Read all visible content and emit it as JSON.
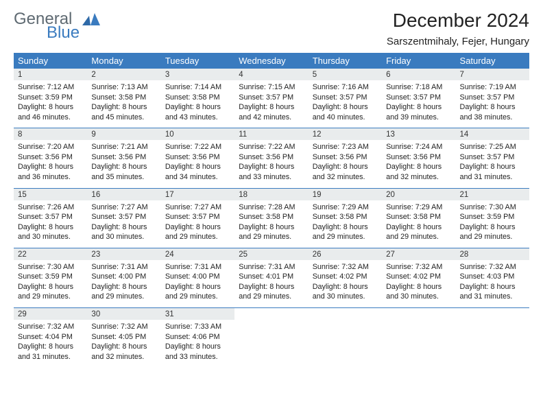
{
  "brand": {
    "word1": "General",
    "word2": "Blue"
  },
  "title": "December 2024",
  "location": "Sarszentmihaly, Fejer, Hungary",
  "colors": {
    "header_bg": "#3a7bbf",
    "daynum_bg": "#e9eced",
    "rule": "#3a7bbf",
    "logo_gray": "#5f6a72",
    "logo_blue": "#3a7bbf"
  },
  "weekdays": [
    "Sunday",
    "Monday",
    "Tuesday",
    "Wednesday",
    "Thursday",
    "Friday",
    "Saturday"
  ],
  "weeks": [
    [
      {
        "n": "1",
        "sr": "7:12 AM",
        "ss": "3:59 PM",
        "dl": "8 hours and 46 minutes."
      },
      {
        "n": "2",
        "sr": "7:13 AM",
        "ss": "3:58 PM",
        "dl": "8 hours and 45 minutes."
      },
      {
        "n": "3",
        "sr": "7:14 AM",
        "ss": "3:58 PM",
        "dl": "8 hours and 43 minutes."
      },
      {
        "n": "4",
        "sr": "7:15 AM",
        "ss": "3:57 PM",
        "dl": "8 hours and 42 minutes."
      },
      {
        "n": "5",
        "sr": "7:16 AM",
        "ss": "3:57 PM",
        "dl": "8 hours and 40 minutes."
      },
      {
        "n": "6",
        "sr": "7:18 AM",
        "ss": "3:57 PM",
        "dl": "8 hours and 39 minutes."
      },
      {
        "n": "7",
        "sr": "7:19 AM",
        "ss": "3:57 PM",
        "dl": "8 hours and 38 minutes."
      }
    ],
    [
      {
        "n": "8",
        "sr": "7:20 AM",
        "ss": "3:56 PM",
        "dl": "8 hours and 36 minutes."
      },
      {
        "n": "9",
        "sr": "7:21 AM",
        "ss": "3:56 PM",
        "dl": "8 hours and 35 minutes."
      },
      {
        "n": "10",
        "sr": "7:22 AM",
        "ss": "3:56 PM",
        "dl": "8 hours and 34 minutes."
      },
      {
        "n": "11",
        "sr": "7:22 AM",
        "ss": "3:56 PM",
        "dl": "8 hours and 33 minutes."
      },
      {
        "n": "12",
        "sr": "7:23 AM",
        "ss": "3:56 PM",
        "dl": "8 hours and 32 minutes."
      },
      {
        "n": "13",
        "sr": "7:24 AM",
        "ss": "3:56 PM",
        "dl": "8 hours and 32 minutes."
      },
      {
        "n": "14",
        "sr": "7:25 AM",
        "ss": "3:57 PM",
        "dl": "8 hours and 31 minutes."
      }
    ],
    [
      {
        "n": "15",
        "sr": "7:26 AM",
        "ss": "3:57 PM",
        "dl": "8 hours and 30 minutes."
      },
      {
        "n": "16",
        "sr": "7:27 AM",
        "ss": "3:57 PM",
        "dl": "8 hours and 30 minutes."
      },
      {
        "n": "17",
        "sr": "7:27 AM",
        "ss": "3:57 PM",
        "dl": "8 hours and 29 minutes."
      },
      {
        "n": "18",
        "sr": "7:28 AM",
        "ss": "3:58 PM",
        "dl": "8 hours and 29 minutes."
      },
      {
        "n": "19",
        "sr": "7:29 AM",
        "ss": "3:58 PM",
        "dl": "8 hours and 29 minutes."
      },
      {
        "n": "20",
        "sr": "7:29 AM",
        "ss": "3:58 PM",
        "dl": "8 hours and 29 minutes."
      },
      {
        "n": "21",
        "sr": "7:30 AM",
        "ss": "3:59 PM",
        "dl": "8 hours and 29 minutes."
      }
    ],
    [
      {
        "n": "22",
        "sr": "7:30 AM",
        "ss": "3:59 PM",
        "dl": "8 hours and 29 minutes."
      },
      {
        "n": "23",
        "sr": "7:31 AM",
        "ss": "4:00 PM",
        "dl": "8 hours and 29 minutes."
      },
      {
        "n": "24",
        "sr": "7:31 AM",
        "ss": "4:00 PM",
        "dl": "8 hours and 29 minutes."
      },
      {
        "n": "25",
        "sr": "7:31 AM",
        "ss": "4:01 PM",
        "dl": "8 hours and 29 minutes."
      },
      {
        "n": "26",
        "sr": "7:32 AM",
        "ss": "4:02 PM",
        "dl": "8 hours and 30 minutes."
      },
      {
        "n": "27",
        "sr": "7:32 AM",
        "ss": "4:02 PM",
        "dl": "8 hours and 30 minutes."
      },
      {
        "n": "28",
        "sr": "7:32 AM",
        "ss": "4:03 PM",
        "dl": "8 hours and 31 minutes."
      }
    ],
    [
      {
        "n": "29",
        "sr": "7:32 AM",
        "ss": "4:04 PM",
        "dl": "8 hours and 31 minutes."
      },
      {
        "n": "30",
        "sr": "7:32 AM",
        "ss": "4:05 PM",
        "dl": "8 hours and 32 minutes."
      },
      {
        "n": "31",
        "sr": "7:33 AM",
        "ss": "4:06 PM",
        "dl": "8 hours and 33 minutes."
      },
      null,
      null,
      null,
      null
    ]
  ],
  "labels": {
    "sunrise": "Sunrise:",
    "sunset": "Sunset:",
    "daylight": "Daylight:"
  }
}
